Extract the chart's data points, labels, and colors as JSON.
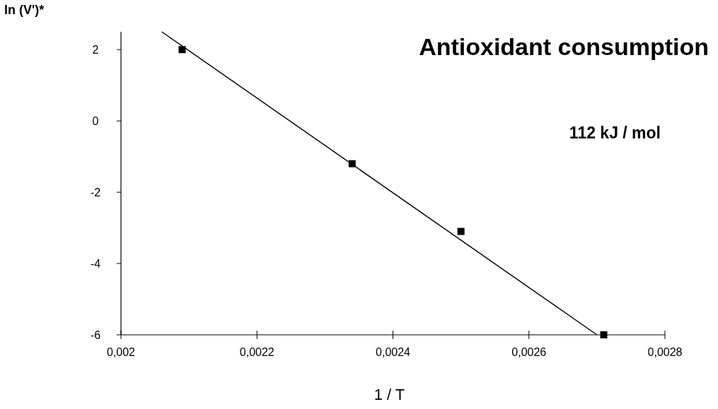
{
  "chart_data": {
    "type": "scatter",
    "title": "Antioxidant consumption",
    "xlabel": "1 / T",
    "ylabel": "ln (V')*",
    "annotations": [
      "112 kJ / mol"
    ],
    "xlim": [
      0.002,
      0.0028
    ],
    "xticks": [
      {
        "value": 0.002,
        "label": "0,002"
      },
      {
        "value": 0.0022,
        "label": "0,0022"
      },
      {
        "value": 0.0024,
        "label": "0,0024"
      },
      {
        "value": 0.0026,
        "label": "0,0026"
      },
      {
        "value": 0.0028,
        "label": "0,0028"
      }
    ],
    "ylim": [
      -6,
      2.5
    ],
    "yticks": [
      2,
      0,
      -2,
      -4,
      -6
    ],
    "grid": false,
    "marker": "square",
    "series": [
      {
        "color": "#000000",
        "x": [
          0.00209,
          0.00234,
          0.0025,
          0.00271
        ],
        "values": [
          2.0,
          -1.2,
          -3.1,
          -6.0
        ]
      },
      {
        "type": "line",
        "color": "#000000",
        "marker": "none",
        "line_style": "solid",
        "x": [
          0.00206,
          0.0027
        ],
        "values": [
          2.5,
          -6.0
        ]
      }
    ]
  }
}
